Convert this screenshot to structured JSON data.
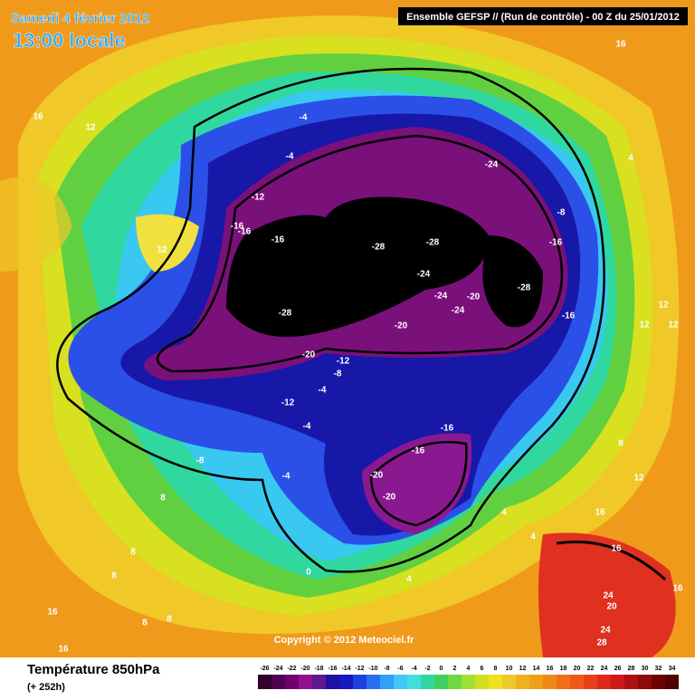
{
  "header": {
    "date": "Samedi 4 février 2012",
    "time": "13:00 locale",
    "model": "Ensemble GEFSP // (Run de contrôle)  -  00 Z du 25/01/2012"
  },
  "footer": {
    "variable": "Température 850hPa",
    "lead": "(+ 252h)",
    "copyright": "Copyright © 2012 Meteociel.fr"
  },
  "legend": {
    "labels": [
      -26,
      -24,
      -22,
      -20,
      -18,
      -16,
      -14,
      -12,
      -10,
      -8,
      -6,
      -4,
      -2,
      0,
      2,
      4,
      6,
      8,
      10,
      12,
      14,
      16,
      18,
      20,
      22,
      24,
      26,
      28,
      30,
      32,
      34
    ]
  },
  "contour_labels": [
    -4,
    -4,
    -12,
    -16,
    -16,
    -16,
    -28,
    -28,
    -24,
    -8,
    -16,
    -24,
    -24,
    -20,
    -24,
    -28,
    -16,
    -28,
    -20,
    -20,
    -12,
    -8,
    -4,
    -12,
    -4,
    -16,
    -16,
    -20,
    -20,
    -8,
    -4,
    16,
    16,
    12,
    4,
    12,
    12,
    12,
    12,
    12,
    8,
    8,
    4,
    16,
    16,
    8,
    8,
    0,
    4,
    16,
    8,
    8,
    16,
    24,
    20,
    24,
    28,
    16,
    4
  ]
}
